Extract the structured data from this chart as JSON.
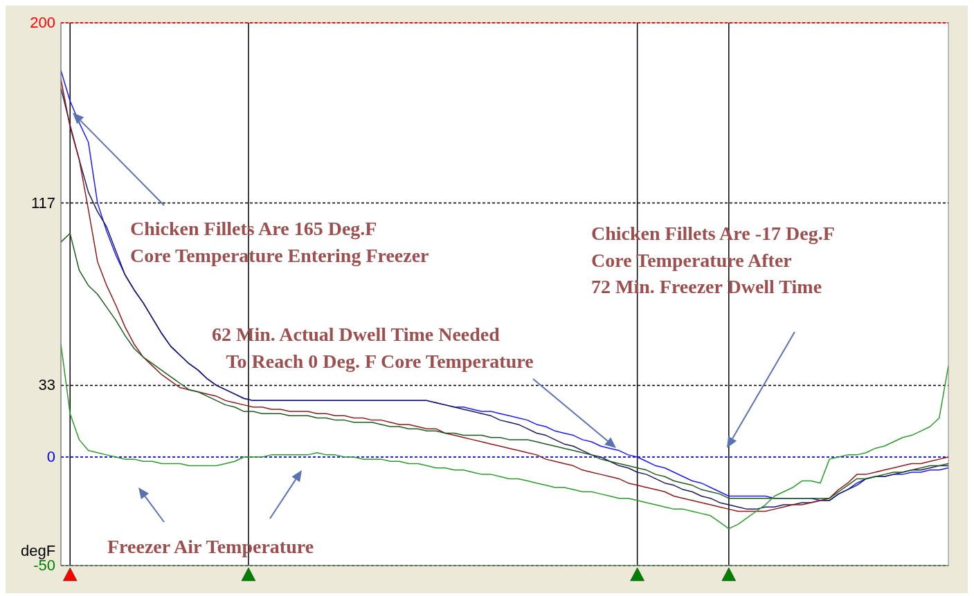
{
  "chart_data": {
    "type": "line",
    "ylabel": "degF",
    "categories": [
      null,
      null,
      null,
      null,
      null,
      null,
      null,
      null,
      null,
      null,
      null,
      null,
      null,
      null,
      null,
      null,
      null,
      null,
      null,
      null,
      null,
      null,
      null,
      null,
      null,
      null,
      null,
      null,
      null,
      null,
      null,
      null,
      null,
      null,
      null,
      null,
      null,
      null,
      null,
      null,
      null,
      null,
      null,
      null,
      null,
      null,
      null,
      null,
      null,
      null,
      null,
      null,
      null,
      null,
      null,
      null,
      null,
      null,
      null,
      null,
      null,
      null,
      null,
      null,
      null,
      null,
      null,
      null,
      null,
      null,
      null,
      null,
      null,
      null,
      null,
      null,
      null,
      null,
      null,
      null,
      null,
      null,
      null,
      null,
      null,
      null,
      null,
      null,
      null,
      null,
      null,
      null,
      null,
      null,
      null,
      null,
      null,
      null
    ],
    "ylim": [
      -50,
      200
    ],
    "yticks": [
      -50,
      0,
      33,
      117,
      200
    ],
    "tick_labels": "y",
    "marker": "none",
    "line_style": "solid",
    "series": [
      {
        "color": "#1a1aff",
        "values": [
          178,
          164,
          154,
          145,
          117,
          104,
          93,
          84,
          77,
          71,
          64,
          57,
          51,
          47,
          43,
          40,
          36,
          33,
          31,
          29,
          27,
          26,
          26,
          26,
          26,
          26,
          26,
          26,
          26,
          26,
          26,
          26,
          26,
          26,
          26,
          26,
          26,
          26,
          26,
          26,
          26,
          25,
          24,
          23,
          23,
          22,
          21,
          21,
          20,
          19,
          18,
          17,
          15,
          14,
          12,
          11,
          10,
          8,
          7,
          5,
          4,
          3,
          1,
          0,
          -2,
          -4,
          -5,
          -7,
          -9,
          -11,
          -12,
          -14,
          -16,
          -18,
          -18,
          -18,
          -18,
          -18,
          -19,
          -19,
          -19,
          -19,
          -19,
          -20,
          -20,
          -17,
          -15,
          -12,
          -10,
          -9,
          -9,
          -8,
          -8,
          -7,
          -7,
          -6,
          -6,
          -5
        ]
      },
      {
        "color": "#1a1a5a",
        "values": [
          170,
          153,
          137,
          122,
          113,
          106,
          95,
          84,
          77,
          71,
          64,
          57,
          51,
          47,
          43,
          40,
          36,
          33,
          31,
          29,
          27,
          26,
          26,
          26,
          26,
          26,
          26,
          26,
          26,
          26,
          26,
          26,
          26,
          26,
          26,
          26,
          26,
          26,
          26,
          26,
          26,
          25,
          24,
          23,
          22,
          21,
          20,
          19,
          17,
          16,
          15,
          13,
          11,
          10,
          8,
          6,
          5,
          3,
          1,
          0,
          -2,
          -4,
          -5,
          -7,
          -8,
          -10,
          -12,
          -13,
          -15,
          -16,
          -18,
          -19,
          -21,
          -22,
          -23,
          -24,
          -24,
          -23,
          -23,
          -22,
          -22,
          -21,
          -21,
          -20,
          -20,
          -17,
          -15,
          -13,
          -10,
          -9,
          -9,
          -8,
          -7,
          -6,
          -6,
          -5,
          -4,
          -4
        ]
      },
      {
        "color": "#8b1a1a",
        "values": [
          174,
          152,
          137,
          114,
          90,
          79,
          70,
          60,
          52,
          46,
          42,
          38,
          35,
          32,
          31,
          30,
          29,
          28,
          26,
          25,
          24,
          23,
          23,
          22,
          22,
          21,
          21,
          21,
          20,
          20,
          19,
          19,
          18,
          18,
          17,
          17,
          16,
          15,
          15,
          14,
          13,
          13,
          11,
          10,
          9,
          8,
          7,
          6,
          5,
          4,
          3,
          2,
          1,
          -1,
          -2,
          -3,
          -4,
          -6,
          -7,
          -8,
          -9,
          -10,
          -12,
          -13,
          -14,
          -15,
          -16,
          -18,
          -19,
          -20,
          -21,
          -22,
          -23,
          -24,
          -25,
          -25,
          -25,
          -25,
          -24,
          -23,
          -22,
          -22,
          -21,
          -20,
          -19,
          -15,
          -12,
          -8,
          -8,
          -7,
          -6,
          -5,
          -4,
          -3,
          -3,
          -2,
          -1,
          0
        ]
      },
      {
        "color": "#1e5a1e",
        "values": [
          99,
          103,
          86,
          79,
          75,
          69,
          63,
          56,
          50,
          46,
          43,
          40,
          37,
          34,
          31,
          30,
          28,
          26,
          24,
          23,
          21,
          21,
          20,
          20,
          20,
          19,
          19,
          19,
          18,
          18,
          17,
          17,
          16,
          16,
          16,
          15,
          14,
          14,
          13,
          13,
          12,
          12,
          11,
          11,
          10,
          10,
          10,
          9,
          9,
          8,
          8,
          8,
          7,
          6,
          5,
          4,
          3,
          2,
          1,
          -1,
          -2,
          -3,
          -4,
          -5,
          -6,
          -8,
          -9,
          -11,
          -12,
          -13,
          -15,
          -16,
          -17,
          -19,
          -19,
          -19,
          -19,
          -19,
          -19,
          -19,
          -19,
          -19,
          -19,
          -19,
          -19,
          -16,
          -13,
          -10,
          -10,
          -9,
          -8,
          -7,
          -7,
          -6,
          -5,
          -4,
          -4,
          -3
        ]
      },
      {
        "color": "#2a9a2a",
        "values": [
          52,
          20,
          8,
          3,
          2,
          1,
          0,
          -1,
          -1,
          -2,
          -2,
          -3,
          -3,
          -3,
          -4,
          -4,
          -4,
          -4,
          -3,
          -2,
          0,
          0,
          0,
          1,
          1,
          1,
          1,
          1,
          2,
          1,
          1,
          0,
          0,
          -1,
          -1,
          -1,
          -2,
          -2,
          -3,
          -3,
          -4,
          -5,
          -5,
          -6,
          -6,
          -7,
          -8,
          -8,
          -9,
          -10,
          -10,
          -11,
          -12,
          -13,
          -14,
          -14,
          -15,
          -16,
          -16,
          -17,
          -18,
          -19,
          -19,
          -20,
          -21,
          -22,
          -23,
          -24,
          -24,
          -25,
          -26,
          -27,
          -30,
          -33,
          -31,
          -28,
          -25,
          -22,
          -18,
          -16,
          -14,
          -11,
          -11,
          -12,
          -1,
          0,
          1,
          1,
          2,
          4,
          5,
          7,
          9,
          10,
          12,
          14,
          18,
          42
        ]
      }
    ],
    "ref_lines": [
      {
        "axis": "y",
        "value": 200,
        "color": "#ff0000",
        "line_style": "dashed"
      },
      {
        "axis": "y",
        "value": 117,
        "color": "#000000",
        "line_style": "dashed"
      },
      {
        "axis": "y",
        "value": 33,
        "color": "#000000",
        "line_style": "dashed"
      },
      {
        "axis": "y",
        "value": 0,
        "color": "#0000ff",
        "line_style": "dashed"
      },
      {
        "axis": "y",
        "value": -50,
        "color": "#008000",
        "line_style": "dashed"
      }
    ],
    "grid": true,
    "annotations": [
      "Chicken Fillets Are 165 Deg.F\nCore Temperature Entering Freezer",
      "Chicken Fillets Are -17 Deg.F\nCore Temperature After\n72 Min. Freezer Dwell Time",
      "62 Min. Actual Dwell Time Needed\n   To Reach 0 Deg. F Core Temperature",
      "Freezer Air Temperature"
    ]
  }
}
